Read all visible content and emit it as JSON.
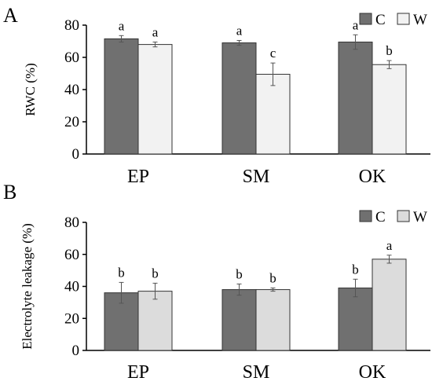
{
  "chart_data": [
    {
      "panel": "A",
      "type": "bar",
      "title": "",
      "xlabel": "",
      "ylabel": "RWC (%)",
      "ylim": [
        0,
        80
      ],
      "yticks": [
        0,
        20,
        40,
        60,
        80
      ],
      "categories": [
        "EP",
        "SM",
        "OK"
      ],
      "legend_position": "top-right",
      "series": [
        {
          "name": "C",
          "color": "#707070",
          "values": [
            71.5,
            69.0,
            69.5
          ],
          "errors": [
            2.0,
            1.5,
            4.5
          ],
          "labels": [
            "a",
            "a",
            "a"
          ]
        },
        {
          "name": "W",
          "color": "#f2f2f2",
          "values": [
            68.0,
            49.5,
            55.5
          ],
          "errors": [
            1.5,
            7.0,
            2.5
          ],
          "labels": [
            "a",
            "c",
            "b"
          ]
        }
      ]
    },
    {
      "panel": "B",
      "type": "bar",
      "title": "",
      "xlabel": "",
      "ylabel": "Electrolyte leakage (%)",
      "ylim": [
        0,
        80
      ],
      "yticks": [
        0,
        20,
        40,
        60,
        80
      ],
      "categories": [
        "EP",
        "SM",
        "OK"
      ],
      "legend_position": "top-right",
      "series": [
        {
          "name": "C",
          "color": "#707070",
          "values": [
            36.0,
            38.0,
            39.0
          ],
          "errors": [
            6.5,
            3.5,
            5.5
          ],
          "labels": [
            "b",
            "b",
            "b"
          ]
        },
        {
          "name": "W",
          "color": "#dcdcdc",
          "values": [
            37.0,
            38.0,
            57.0
          ],
          "errors": [
            5.0,
            1.0,
            2.5
          ],
          "labels": [
            "b",
            "b",
            "a"
          ]
        }
      ]
    }
  ]
}
